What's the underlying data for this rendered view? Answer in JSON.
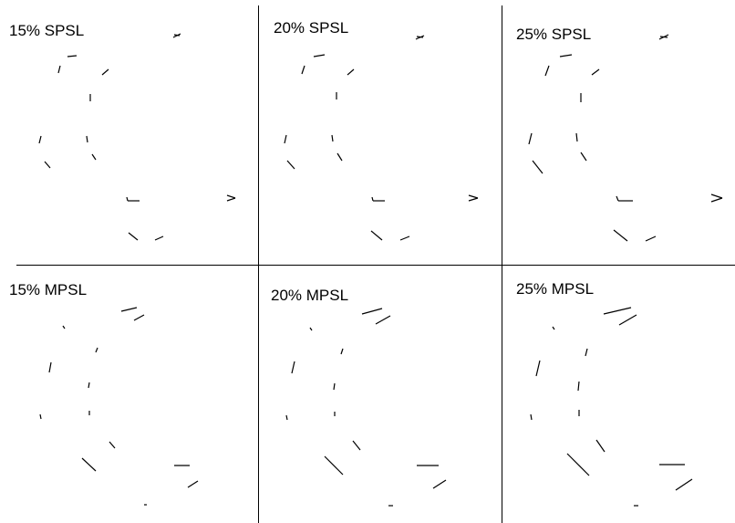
{
  "panels": {
    "spsl_15": {
      "label": "15% SPSL"
    },
    "spsl_20": {
      "label": "20% SPSL"
    },
    "spsl_25": {
      "label": "25% SPSL"
    },
    "mpsl_15": {
      "label": "15% MPSL"
    },
    "mpsl_20": {
      "label": "20% MPSL"
    },
    "mpsl_25": {
      "label": "25% MPSL"
    }
  },
  "colors": {
    "stroke": "#000000",
    "background": "#ffffff"
  }
}
